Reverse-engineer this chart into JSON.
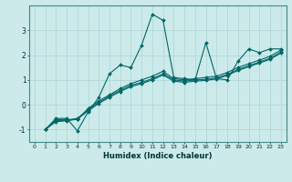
{
  "xlabel": "Humidex (Indice chaleur)",
  "ylabel": "",
  "background_color": "#cceaea",
  "grid_color": "#aad4d4",
  "line_color": "#006666",
  "xlim": [
    -0.5,
    23.5
  ],
  "ylim": [
    -1.5,
    4.0
  ],
  "xticks": [
    0,
    1,
    2,
    3,
    4,
    5,
    6,
    7,
    8,
    9,
    10,
    11,
    12,
    13,
    14,
    15,
    16,
    17,
    18,
    19,
    20,
    21,
    22,
    23
  ],
  "yticks": [
    -1,
    0,
    1,
    2,
    3
  ],
  "lines": [
    {
      "x": [
        1,
        2,
        3,
        4,
        5,
        6,
        7,
        8,
        9,
        10,
        11,
        12,
        13,
        14,
        15,
        16,
        17,
        18,
        19,
        20,
        21,
        22,
        23
      ],
      "y": [
        -1.0,
        -0.55,
        -0.55,
        -1.05,
        -0.3,
        0.3,
        1.25,
        1.6,
        1.5,
        2.4,
        3.65,
        3.4,
        1.1,
        1.05,
        1.0,
        2.5,
        1.05,
        1.0,
        1.75,
        2.25,
        2.1,
        2.25,
        2.25
      ]
    },
    {
      "x": [
        1,
        2,
        3,
        4,
        5,
        6,
        7,
        8,
        9,
        10,
        11,
        12,
        13,
        14,
        15,
        16,
        17,
        18,
        19,
        20,
        21,
        22,
        23
      ],
      "y": [
        -1.0,
        -0.6,
        -0.6,
        -0.6,
        -0.15,
        0.15,
        0.4,
        0.65,
        0.85,
        1.0,
        1.15,
        1.35,
        1.05,
        1.0,
        1.05,
        1.1,
        1.15,
        1.3,
        1.5,
        1.65,
        1.8,
        1.95,
        2.2
      ]
    },
    {
      "x": [
        1,
        2,
        3,
        4,
        5,
        6,
        7,
        8,
        9,
        10,
        11,
        12,
        13,
        14,
        15,
        16,
        17,
        18,
        19,
        20,
        21,
        22,
        23
      ],
      "y": [
        -1.0,
        -0.65,
        -0.62,
        -0.55,
        -0.2,
        0.1,
        0.35,
        0.58,
        0.78,
        0.9,
        1.05,
        1.25,
        1.0,
        0.95,
        1.0,
        1.02,
        1.08,
        1.22,
        1.42,
        1.57,
        1.72,
        1.87,
        2.12
      ]
    },
    {
      "x": [
        1,
        2,
        3,
        4,
        5,
        6,
        7,
        8,
        9,
        10,
        11,
        12,
        13,
        14,
        15,
        16,
        17,
        18,
        19,
        20,
        21,
        22,
        23
      ],
      "y": [
        -1.0,
        -0.68,
        -0.65,
        -0.58,
        -0.25,
        0.05,
        0.3,
        0.53,
        0.73,
        0.85,
        1.0,
        1.2,
        0.95,
        0.9,
        0.95,
        0.98,
        1.04,
        1.18,
        1.38,
        1.53,
        1.68,
        1.83,
        2.08
      ]
    }
  ]
}
